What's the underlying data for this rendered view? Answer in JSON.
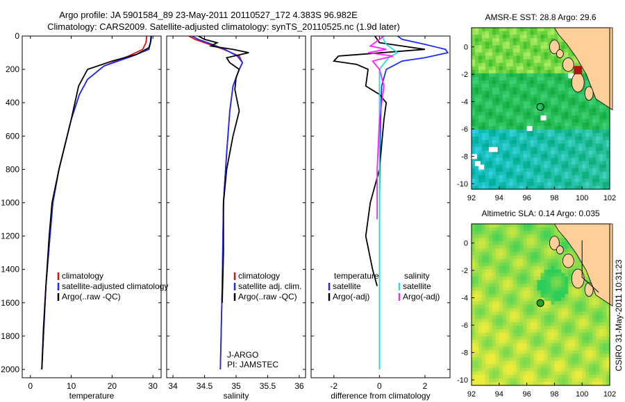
{
  "header": {
    "line1": "Argo profile: JA 5901584_89 23-May-2011 20110527_172 4.383S 96.982E",
    "line2": "Climatology: CARS2009. Satellite-adjusted climatology: synTS_20110525.nc (1.9d later)"
  },
  "side_text": "CSIRO 31-May-2011 10:31:23",
  "colors": {
    "climatology": "#e01010",
    "satellite": "#1a2cff",
    "argo": "#000000",
    "sat_salinity": "#22e0e0",
    "argo_salinity": "#ff22ff",
    "land": "#ffcf99",
    "coast": "#000000"
  },
  "chart_data": [
    {
      "id": "temperature",
      "type": "line",
      "xlabel": "temperature",
      "ylabel": "",
      "xlim": [
        -2,
        32
      ],
      "ylim": [
        2050,
        0
      ],
      "y_inverted": true,
      "xticks": [
        0,
        10,
        20,
        30
      ],
      "xtick_labels": [
        "0",
        "10",
        "20",
        "30"
      ],
      "yticks": [
        0,
        200,
        400,
        600,
        800,
        1000,
        1200,
        1400,
        1600,
        1800,
        2000
      ],
      "ytick_labels": [
        "0",
        "200",
        "400",
        "600",
        "800",
        "1000",
        "1200",
        "1400",
        "1600",
        "1800",
        "2000"
      ],
      "legend": [
        "climatology",
        "satellite-adjusted climatology",
        "Argo(..raw -QC)"
      ],
      "series": [
        {
          "name": "climatology",
          "color_key": "climatology",
          "x": [
            28.5,
            28.3,
            27.5,
            24,
            18,
            14,
            12,
            10,
            9,
            7,
            5.5,
            4.8,
            3.8,
            3.3,
            2.8
          ],
          "y": [
            0,
            40,
            80,
            120,
            180,
            260,
            350,
            500,
            600,
            800,
            1000,
            1200,
            1500,
            1750,
            2000
          ]
        },
        {
          "name": "satellite-adjusted climatology",
          "color_key": "satellite",
          "x": [
            29.5,
            29.4,
            29,
            25,
            18,
            14,
            12,
            10,
            9,
            7,
            5.5,
            4.8,
            3.8,
            3.3,
            2.8
          ],
          "y": [
            0,
            40,
            80,
            120,
            180,
            260,
            350,
            500,
            600,
            800,
            1000,
            1200,
            1500,
            1750,
            2000
          ]
        },
        {
          "name": "Argo(..raw -QC)",
          "color_key": "argo",
          "x": [
            29.6,
            29.5,
            29,
            26,
            20,
            14,
            11.8,
            10,
            9,
            7,
            5.3,
            4.6,
            3.8,
            3.2,
            2.8
          ],
          "y": [
            0,
            30,
            70,
            110,
            150,
            200,
            300,
            500,
            600,
            800,
            1000,
            1200,
            1500,
            1750,
            2000
          ]
        }
      ]
    },
    {
      "id": "salinity",
      "type": "line",
      "xlabel": "salinity",
      "ylabel": "",
      "xlim": [
        33.9,
        36.1
      ],
      "ylim": [
        2050,
        0
      ],
      "y_inverted": true,
      "xticks": [
        34,
        34.5,
        35,
        35.5,
        36
      ],
      "xtick_labels": [
        "34",
        "34.5",
        "35",
        "35.5",
        "36"
      ],
      "legend": [
        "climatology",
        "satellite adj. clim.",
        "Argo(..raw -QC)"
      ],
      "annotations": [
        "J-ARGO",
        "PI: JAMSTEC"
      ],
      "series": [
        {
          "name": "climatology",
          "color_key": "climatology",
          "x": [
            34.25,
            34.35,
            34.5,
            34.8,
            35.05,
            35.1,
            35.05,
            34.95,
            34.9,
            34.85,
            34.8,
            34.78,
            34.75
          ],
          "y": [
            0,
            20,
            40,
            80,
            120,
            160,
            200,
            300,
            450,
            700,
            1000,
            1500,
            2000
          ]
        },
        {
          "name": "satellite adj. clim.",
          "color_key": "satellite",
          "x": [
            34.3,
            34.4,
            34.55,
            34.82,
            35.02,
            35.1,
            35.05,
            34.95,
            34.9,
            34.85,
            34.8,
            34.78,
            34.75
          ],
          "y": [
            0,
            20,
            40,
            80,
            120,
            160,
            200,
            300,
            450,
            700,
            1000,
            1500,
            2000
          ]
        },
        {
          "name": "Argo(..raw -QC)",
          "color_key": "argo",
          "x": [
            34.4,
            34.5,
            34.7,
            34.6,
            34.95,
            35.2,
            34.85,
            34.9,
            35.05,
            35.0,
            34.98,
            35.05,
            34.95,
            34.85,
            34.8,
            34.8,
            34.78
          ],
          "y": [
            0,
            20,
            40,
            60,
            80,
            100,
            130,
            160,
            200,
            250,
            320,
            450,
            600,
            800,
            1000,
            1300,
            1600
          ]
        }
      ]
    },
    {
      "id": "difference",
      "type": "line",
      "xlabel": "difference from climatology",
      "ylabel": "",
      "xlim": [
        -3,
        3.1
      ],
      "ylim": [
        2050,
        0
      ],
      "y_inverted": true,
      "xticks": [
        -2,
        0,
        2
      ],
      "xtick_labels": [
        "-2",
        "0",
        "2"
      ],
      "legend": [
        "temperature",
        "satellite",
        "Argo(-adj)",
        "salinity",
        "satellite",
        "Argo(-adj)"
      ],
      "series": [
        {
          "name": "satellite",
          "group": "temperature",
          "color_key": "satellite",
          "x": [
            0.8,
            1.0,
            2.0,
            2.9,
            3.0,
            2.0,
            1.0,
            0.3,
            0.1,
            0.05,
            0.0,
            0.0
          ],
          "y": [
            0,
            20,
            50,
            80,
            100,
            130,
            150,
            200,
            300,
            500,
            1000,
            2000
          ]
        },
        {
          "name": "Argo(-adj)",
          "group": "temperature",
          "color_key": "argo",
          "x": [
            -0.2,
            0.0,
            2.0,
            -1.8,
            -2.0,
            -1.0,
            -0.5,
            -0.6,
            0.0,
            0.3,
            0.2,
            0.0,
            -0.4,
            -0.6,
            -0.3,
            -0.1
          ],
          "y": [
            0,
            40,
            80,
            120,
            150,
            170,
            200,
            300,
            350,
            400,
            500,
            800,
            1000,
            1200,
            1400,
            1500
          ]
        },
        {
          "name": "satellite",
          "group": "salinity",
          "color_key": "sat_salinity",
          "x": [
            0.1,
            0.3,
            0.6,
            0.8,
            0.4,
            0.0,
            0.0,
            0.0
          ],
          "y": [
            0,
            50,
            80,
            100,
            130,
            200,
            1000,
            2000
          ]
        },
        {
          "name": "Argo(-adj)",
          "group": "salinity",
          "color_key": "argo_salinity",
          "x": [
            0.2,
            -0.4,
            0.3,
            -0.5,
            0.6,
            -0.3,
            0.0,
            0.2,
            0.0,
            -0.1,
            -0.1
          ],
          "y": [
            0,
            60,
            80,
            100,
            120,
            150,
            200,
            300,
            500,
            800,
            1100
          ]
        }
      ]
    },
    {
      "id": "sst_map",
      "type": "heatmap",
      "title": "AMSR-E SST: 28.8 Argo: 29.6",
      "xlim": [
        92,
        102
      ],
      "ylim": [
        -10.4,
        1.4
      ],
      "xticks": [
        92,
        94,
        96,
        98,
        100,
        102
      ],
      "xtick_labels": [
        "92",
        "94",
        "96",
        "98",
        "100",
        "102"
      ],
      "yticks": [
        0,
        -2,
        -4,
        -6,
        -8,
        -10
      ],
      "ytick_labels": [
        "0",
        "-2",
        "-4",
        "-6",
        "-8",
        "-10"
      ],
      "argo_position": {
        "lon": 96.982,
        "lat": -4.383
      },
      "marker": {
        "lon": 99.7,
        "lat": -1.7
      }
    },
    {
      "id": "sla_map",
      "type": "heatmap",
      "title": "Altimetric SLA: 0.14 Argo: 0.035",
      "xlim": [
        92,
        102
      ],
      "ylim": [
        -10.4,
        1.4
      ],
      "xticks": [
        92,
        94,
        96,
        98,
        100,
        102
      ],
      "xtick_labels": [
        "92",
        "94",
        "96",
        "98",
        "100",
        "102"
      ],
      "yticks": [
        0,
        -2,
        -4,
        -6,
        -8,
        -10
      ],
      "ytick_labels": [
        "0",
        "-2",
        "-4",
        "-6",
        "-8",
        "-10"
      ],
      "argo_position": {
        "lon": 96.982,
        "lat": -4.383
      }
    }
  ]
}
